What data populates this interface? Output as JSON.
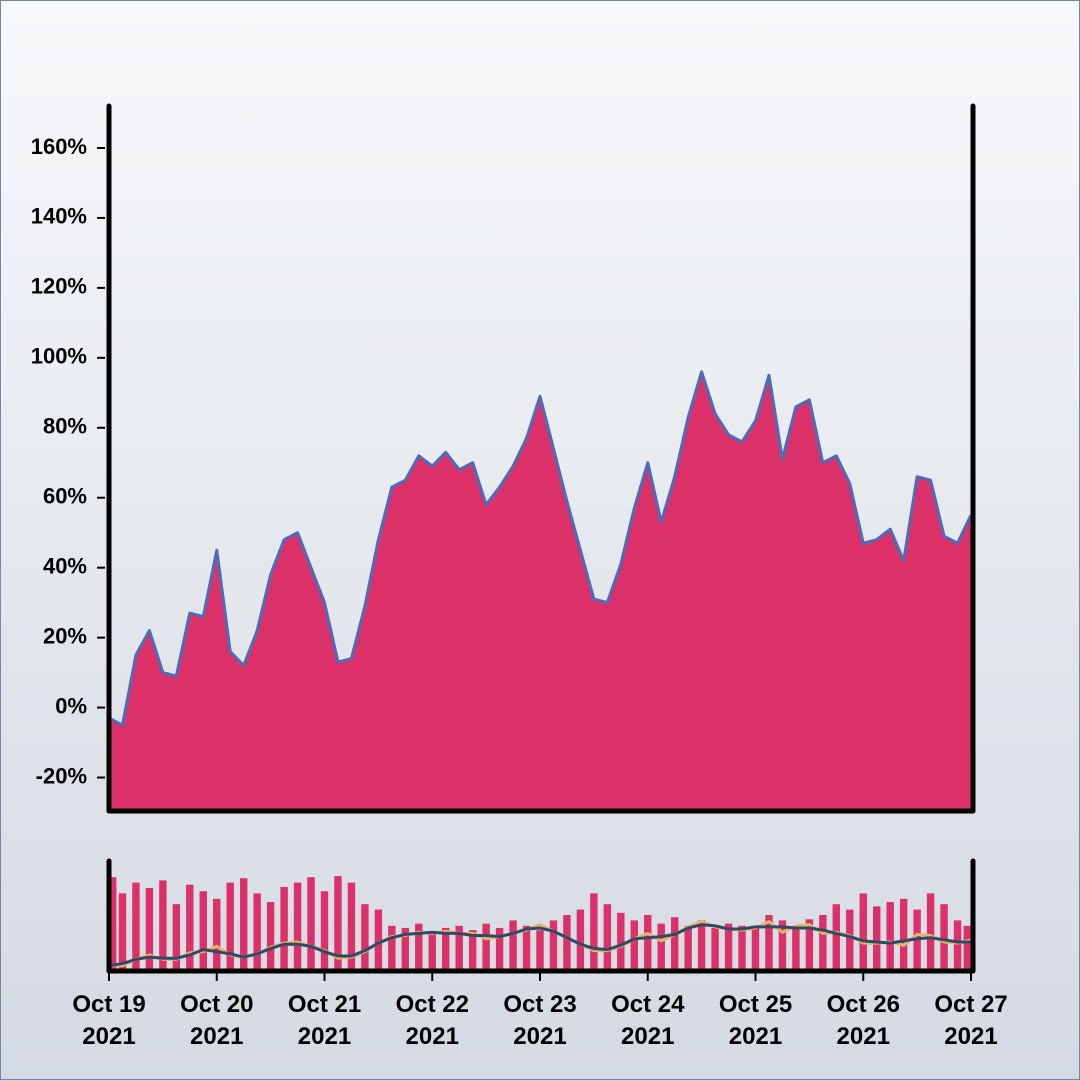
{
  "chart_data": [
    {
      "type": "area",
      "x": [
        "2021-10-19T00:00",
        "2021-10-19T03:00",
        "2021-10-19T06:00",
        "2021-10-19T09:00",
        "2021-10-19T12:00",
        "2021-10-19T15:00",
        "2021-10-19T18:00",
        "2021-10-19T21:00",
        "2021-10-20T00:00",
        "2021-10-20T03:00",
        "2021-10-20T06:00",
        "2021-10-20T09:00",
        "2021-10-20T12:00",
        "2021-10-20T15:00",
        "2021-10-20T18:00",
        "2021-10-20T21:00",
        "2021-10-21T00:00",
        "2021-10-21T03:00",
        "2021-10-21T06:00",
        "2021-10-21T09:00",
        "2021-10-21T12:00",
        "2021-10-21T15:00",
        "2021-10-21T18:00",
        "2021-10-21T21:00",
        "2021-10-22T00:00",
        "2021-10-22T03:00",
        "2021-10-22T06:00",
        "2021-10-22T09:00",
        "2021-10-22T12:00",
        "2021-10-22T15:00",
        "2021-10-22T18:00",
        "2021-10-22T21:00",
        "2021-10-23T00:00",
        "2021-10-23T03:00",
        "2021-10-23T06:00",
        "2021-10-23T09:00",
        "2021-10-23T12:00",
        "2021-10-23T15:00",
        "2021-10-23T18:00",
        "2021-10-23T21:00",
        "2021-10-24T00:00",
        "2021-10-24T03:00",
        "2021-10-24T06:00",
        "2021-10-24T09:00",
        "2021-10-24T12:00",
        "2021-10-24T15:00",
        "2021-10-24T18:00",
        "2021-10-24T21:00",
        "2021-10-25T00:00",
        "2021-10-25T03:00",
        "2021-10-25T06:00",
        "2021-10-25T09:00",
        "2021-10-25T12:00",
        "2021-10-25T15:00",
        "2021-10-25T18:00",
        "2021-10-25T21:00",
        "2021-10-26T00:00",
        "2021-10-26T03:00",
        "2021-10-26T06:00",
        "2021-10-26T09:00",
        "2021-10-26T12:00",
        "2021-10-26T15:00",
        "2021-10-26T18:00",
        "2021-10-26T21:00",
        "2021-10-27T00:00"
      ],
      "series": [
        {
          "color": "#dc3068",
          "line_color": "#4c6cb8",
          "values": [
            -3,
            -5,
            15,
            22,
            10,
            9,
            27,
            26,
            45,
            16,
            12,
            22,
            38,
            48,
            50,
            40,
            30,
            13,
            14,
            29,
            48,
            63,
            65,
            72,
            69,
            73,
            68,
            70,
            58,
            63,
            69,
            77,
            89,
            74,
            59,
            45,
            31,
            30,
            41,
            57,
            70,
            53,
            66,
            83,
            96,
            84,
            78,
            76,
            82,
            95,
            71,
            86,
            88,
            70,
            72,
            64,
            47,
            48,
            51,
            42,
            66,
            65,
            49,
            47,
            55
          ]
        }
      ],
      "xlim": [
        "2021-10-19T00:00",
        "2021-10-27T00:00"
      ],
      "ylim": [
        -29,
        172
      ],
      "yticks": [
        {
          "value": -20,
          "label": "-20%"
        },
        {
          "value": 0,
          "label": "0%"
        },
        {
          "value": 20,
          "label": "20%"
        },
        {
          "value": 40,
          "label": "40%"
        },
        {
          "value": 60,
          "label": "60%"
        },
        {
          "value": 80,
          "label": "80%"
        },
        {
          "value": 100,
          "label": "100%"
        },
        {
          "value": 120,
          "label": "120%"
        },
        {
          "value": 140,
          "label": "140%"
        },
        {
          "value": 160,
          "label": "160%"
        }
      ]
    },
    {
      "type": "bar",
      "x": [
        "2021-10-19T00:00",
        "2021-10-19T03:00",
        "2021-10-19T06:00",
        "2021-10-19T09:00",
        "2021-10-19T12:00",
        "2021-10-19T15:00",
        "2021-10-19T18:00",
        "2021-10-19T21:00",
        "2021-10-20T00:00",
        "2021-10-20T03:00",
        "2021-10-20T06:00",
        "2021-10-20T09:00",
        "2021-10-20T12:00",
        "2021-10-20T15:00",
        "2021-10-20T18:00",
        "2021-10-20T21:00",
        "2021-10-21T00:00",
        "2021-10-21T03:00",
        "2021-10-21T06:00",
        "2021-10-21T09:00",
        "2021-10-21T12:00",
        "2021-10-21T15:00",
        "2021-10-21T18:00",
        "2021-10-21T21:00",
        "2021-10-22T00:00",
        "2021-10-22T03:00",
        "2021-10-22T06:00",
        "2021-10-22T09:00",
        "2021-10-22T12:00",
        "2021-10-22T15:00",
        "2021-10-22T18:00",
        "2021-10-22T21:00",
        "2021-10-23T00:00",
        "2021-10-23T03:00",
        "2021-10-23T06:00",
        "2021-10-23T09:00",
        "2021-10-23T12:00",
        "2021-10-23T15:00",
        "2021-10-23T18:00",
        "2021-10-23T21:00",
        "2021-10-24T00:00",
        "2021-10-24T03:00",
        "2021-10-24T06:00",
        "2021-10-24T09:00",
        "2021-10-24T12:00",
        "2021-10-24T15:00",
        "2021-10-24T18:00",
        "2021-10-24T21:00",
        "2021-10-25T00:00",
        "2021-10-25T03:00",
        "2021-10-25T06:00",
        "2021-10-25T09:00",
        "2021-10-25T12:00",
        "2021-10-25T15:00",
        "2021-10-25T18:00",
        "2021-10-25T21:00",
        "2021-10-26T00:00",
        "2021-10-26T03:00",
        "2021-10-26T06:00",
        "2021-10-26T09:00",
        "2021-10-26T12:00",
        "2021-10-26T15:00",
        "2021-10-26T18:00",
        "2021-10-26T21:00",
        "2021-10-27T00:00"
      ],
      "series": [
        {
          "type": "bar",
          "color": "#dc3068",
          "values": [
            85,
            70,
            80,
            75,
            82,
            60,
            78,
            72,
            65,
            80,
            84,
            70,
            62,
            76,
            80,
            85,
            72,
            86,
            80,
            60,
            55,
            40,
            38,
            42,
            35,
            38,
            40,
            36,
            42,
            38,
            45,
            40,
            36,
            45,
            50,
            55,
            70,
            60,
            52,
            45,
            50,
            42,
            48,
            40,
            45,
            38,
            42,
            40,
            38,
            50,
            45,
            40,
            46,
            50,
            60,
            55,
            70,
            58,
            62,
            65,
            55,
            70,
            60,
            45,
            40
          ]
        },
        {
          "type": "line",
          "color": "#e2b56a",
          "values": [
            3,
            3,
            9,
            13,
            9,
            9,
            15,
            16,
            21,
            13,
            11,
            14,
            20,
            24,
            25,
            21,
            17,
            10,
            11,
            16,
            24,
            30,
            31,
            34,
            33,
            35,
            33,
            33,
            28,
            30,
            33,
            36,
            41,
            35,
            29,
            23,
            17,
            17,
            21,
            28,
            33,
            26,
            32,
            39,
            44,
            39,
            37,
            36,
            38,
            44,
            34,
            40,
            41,
            33,
            34,
            31,
            24,
            24,
            25,
            22,
            32,
            31,
            25,
            24,
            27
          ]
        },
        {
          "type": "line",
          "color": "#2f4a66",
          "values": [
            3,
            5,
            9,
            11,
            10,
            10,
            13,
            18,
            16,
            14,
            11,
            14,
            19,
            23,
            23,
            21,
            16,
            12,
            12,
            17,
            24,
            29,
            32,
            33,
            34,
            33,
            33,
            31,
            31,
            30,
            33,
            37,
            38,
            35,
            29,
            23,
            19,
            18,
            22,
            28,
            29,
            30,
            32,
            38,
            41,
            40,
            37,
            37,
            39,
            39,
            39,
            38,
            38,
            36,
            33,
            30,
            26,
            25,
            24,
            26,
            28,
            29,
            27,
            25,
            25
          ]
        }
      ],
      "xlim": [
        "2021-10-19T00:00",
        "2021-10-27T00:00"
      ],
      "ylim": [
        0,
        100
      ],
      "xticks": [
        {
          "value": "2021-10-19T00:00",
          "label": "Oct 19\n2021"
        },
        {
          "value": "2021-10-20T00:00",
          "label": "Oct 20\n2021"
        },
        {
          "value": "2021-10-21T00:00",
          "label": "Oct 21\n2021"
        },
        {
          "value": "2021-10-22T00:00",
          "label": "Oct 22\n2021"
        },
        {
          "value": "2021-10-23T00:00",
          "label": "Oct 23\n2021"
        },
        {
          "value": "2021-10-24T00:00",
          "label": "Oct 24\n2021"
        },
        {
          "value": "2021-10-25T00:00",
          "label": "Oct 25\n2021"
        },
        {
          "value": "2021-10-26T00:00",
          "label": "Oct 26\n2021"
        },
        {
          "value": "2021-10-27T00:00",
          "label": "Oct 27\n2021"
        }
      ]
    }
  ]
}
